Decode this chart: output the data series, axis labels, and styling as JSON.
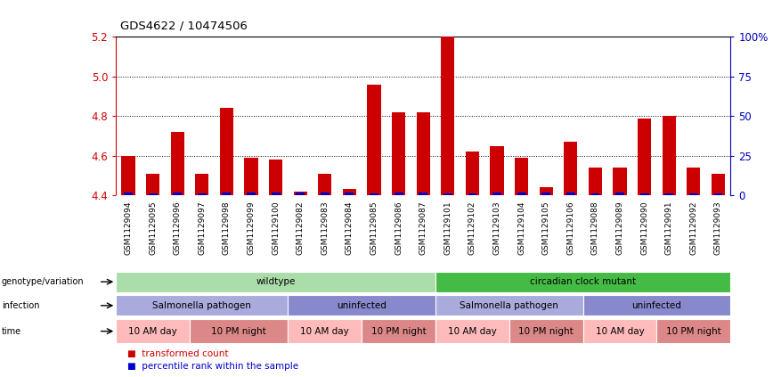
{
  "title": "GDS4622 / 10474506",
  "samples": [
    "GSM1129094",
    "GSM1129095",
    "GSM1129096",
    "GSM1129097",
    "GSM1129098",
    "GSM1129099",
    "GSM1129100",
    "GSM1129082",
    "GSM1129083",
    "GSM1129084",
    "GSM1129085",
    "GSM1129086",
    "GSM1129087",
    "GSM1129101",
    "GSM1129102",
    "GSM1129103",
    "GSM1129104",
    "GSM1129105",
    "GSM1129106",
    "GSM1129088",
    "GSM1129089",
    "GSM1129090",
    "GSM1129091",
    "GSM1129092",
    "GSM1129093"
  ],
  "red_values": [
    4.6,
    4.51,
    4.72,
    4.51,
    4.84,
    4.59,
    4.58,
    4.42,
    4.51,
    4.43,
    4.96,
    4.82,
    4.82,
    5.2,
    4.62,
    4.65,
    4.59,
    4.44,
    4.67,
    4.54,
    4.54,
    4.79,
    4.8,
    4.54,
    4.51
  ],
  "blue_pct": [
    18,
    12,
    18,
    12,
    18,
    15,
    2,
    2,
    15,
    2,
    12,
    18,
    18,
    12,
    12,
    18,
    2,
    2,
    18,
    12,
    18,
    12,
    12,
    12,
    12
  ],
  "ymin": 4.4,
  "ymax": 5.2,
  "yticks": [
    4.4,
    4.6,
    4.8,
    5.0,
    5.2
  ],
  "right_yticks": [
    0,
    25,
    50,
    75,
    100
  ],
  "right_ytick_labels": [
    "0",
    "25",
    "50",
    "75",
    "100%"
  ],
  "bar_color": "#cc0000",
  "blue_color": "#0000cc",
  "bar_width": 0.55,
  "genotype_segments": [
    {
      "label": "wildtype",
      "start": 0,
      "end": 12,
      "color": "#aaddaa"
    },
    {
      "label": "circadian clock mutant",
      "start": 13,
      "end": 24,
      "color": "#44bb44"
    }
  ],
  "infection_segments": [
    {
      "label": "Salmonella pathogen",
      "start": 0,
      "end": 6,
      "color": "#aaaadd"
    },
    {
      "label": "uninfected",
      "start": 7,
      "end": 12,
      "color": "#8888cc"
    },
    {
      "label": "Salmonella pathogen",
      "start": 13,
      "end": 18,
      "color": "#aaaadd"
    },
    {
      "label": "uninfected",
      "start": 19,
      "end": 24,
      "color": "#8888cc"
    }
  ],
  "time_segments": [
    {
      "label": "10 AM day",
      "start": 0,
      "end": 2,
      "color": "#ffbbbb"
    },
    {
      "label": "10 PM night",
      "start": 3,
      "end": 6,
      "color": "#dd8888"
    },
    {
      "label": "10 AM day",
      "start": 7,
      "end": 9,
      "color": "#ffbbbb"
    },
    {
      "label": "10 PM night",
      "start": 10,
      "end": 12,
      "color": "#dd8888"
    },
    {
      "label": "10 AM day",
      "start": 13,
      "end": 15,
      "color": "#ffbbbb"
    },
    {
      "label": "10 PM night",
      "start": 16,
      "end": 18,
      "color": "#dd8888"
    },
    {
      "label": "10 AM day",
      "start": 19,
      "end": 21,
      "color": "#ffbbbb"
    },
    {
      "label": "10 PM night",
      "start": 22,
      "end": 24,
      "color": "#dd8888"
    }
  ],
  "row_labels": [
    "genotype/variation",
    "infection",
    "time"
  ],
  "legend_items": [
    {
      "label": "transformed count",
      "color": "#cc0000"
    },
    {
      "label": "percentile rank within the sample",
      "color": "#0000cc"
    }
  ],
  "bg_color": "#ffffff",
  "axis_color": "#cc0000",
  "right_axis_color": "#0000bb",
  "tick_bg_color": "#cccccc",
  "row_bg_color": "#cccccc"
}
